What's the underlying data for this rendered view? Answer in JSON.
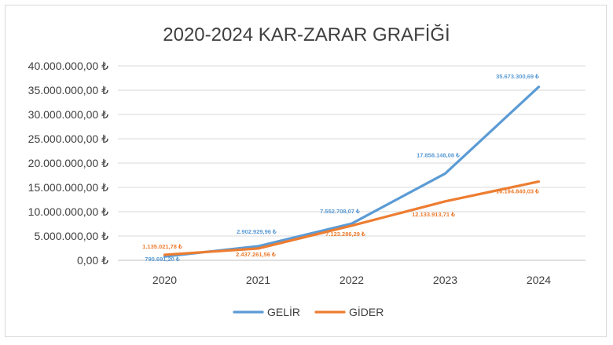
{
  "chart_data": {
    "type": "line",
    "title": "2020-2024 KAR-ZARAR GRAFİĞİ",
    "categories": [
      "2020",
      "2021",
      "2022",
      "2023",
      "2024"
    ],
    "ylim": [
      0,
      40000000
    ],
    "y_ticks": [
      "0,00 ₺",
      "5.000.000,00 ₺",
      "10.000.000,00 ₺",
      "15.000.000,00 ₺",
      "20.000.000,00 ₺",
      "25.000.000,00 ₺",
      "30.000.000,00 ₺",
      "35.000.000,00 ₺",
      "40.000.000,00 ₺"
    ],
    "grid": true,
    "legend_position": "bottom",
    "series": [
      {
        "name": "GELİR",
        "color": "#5b9bd5",
        "values": [
          790691.2,
          2902929.96,
          7552708.07,
          17858148.08,
          35673300.69
        ],
        "labels": [
          "790.691,20 ₺",
          "2.902.929,96 ₺",
          "7.552.708,07 ₺",
          "17.858.148,08 ₺",
          "35.673.300,69 ₺"
        ]
      },
      {
        "name": "GİDER",
        "color": "#ed7d31",
        "values": [
          1135021.78,
          2437261.56,
          7123286.29,
          12133913.71,
          16194840.03
        ],
        "labels": [
          "1.135.021,78 ₺",
          "2.437.261,56 ₺",
          "7.123.286,29 ₺",
          "12.133.913,71 ₺",
          "16.194.840,03 ₺"
        ]
      }
    ]
  }
}
